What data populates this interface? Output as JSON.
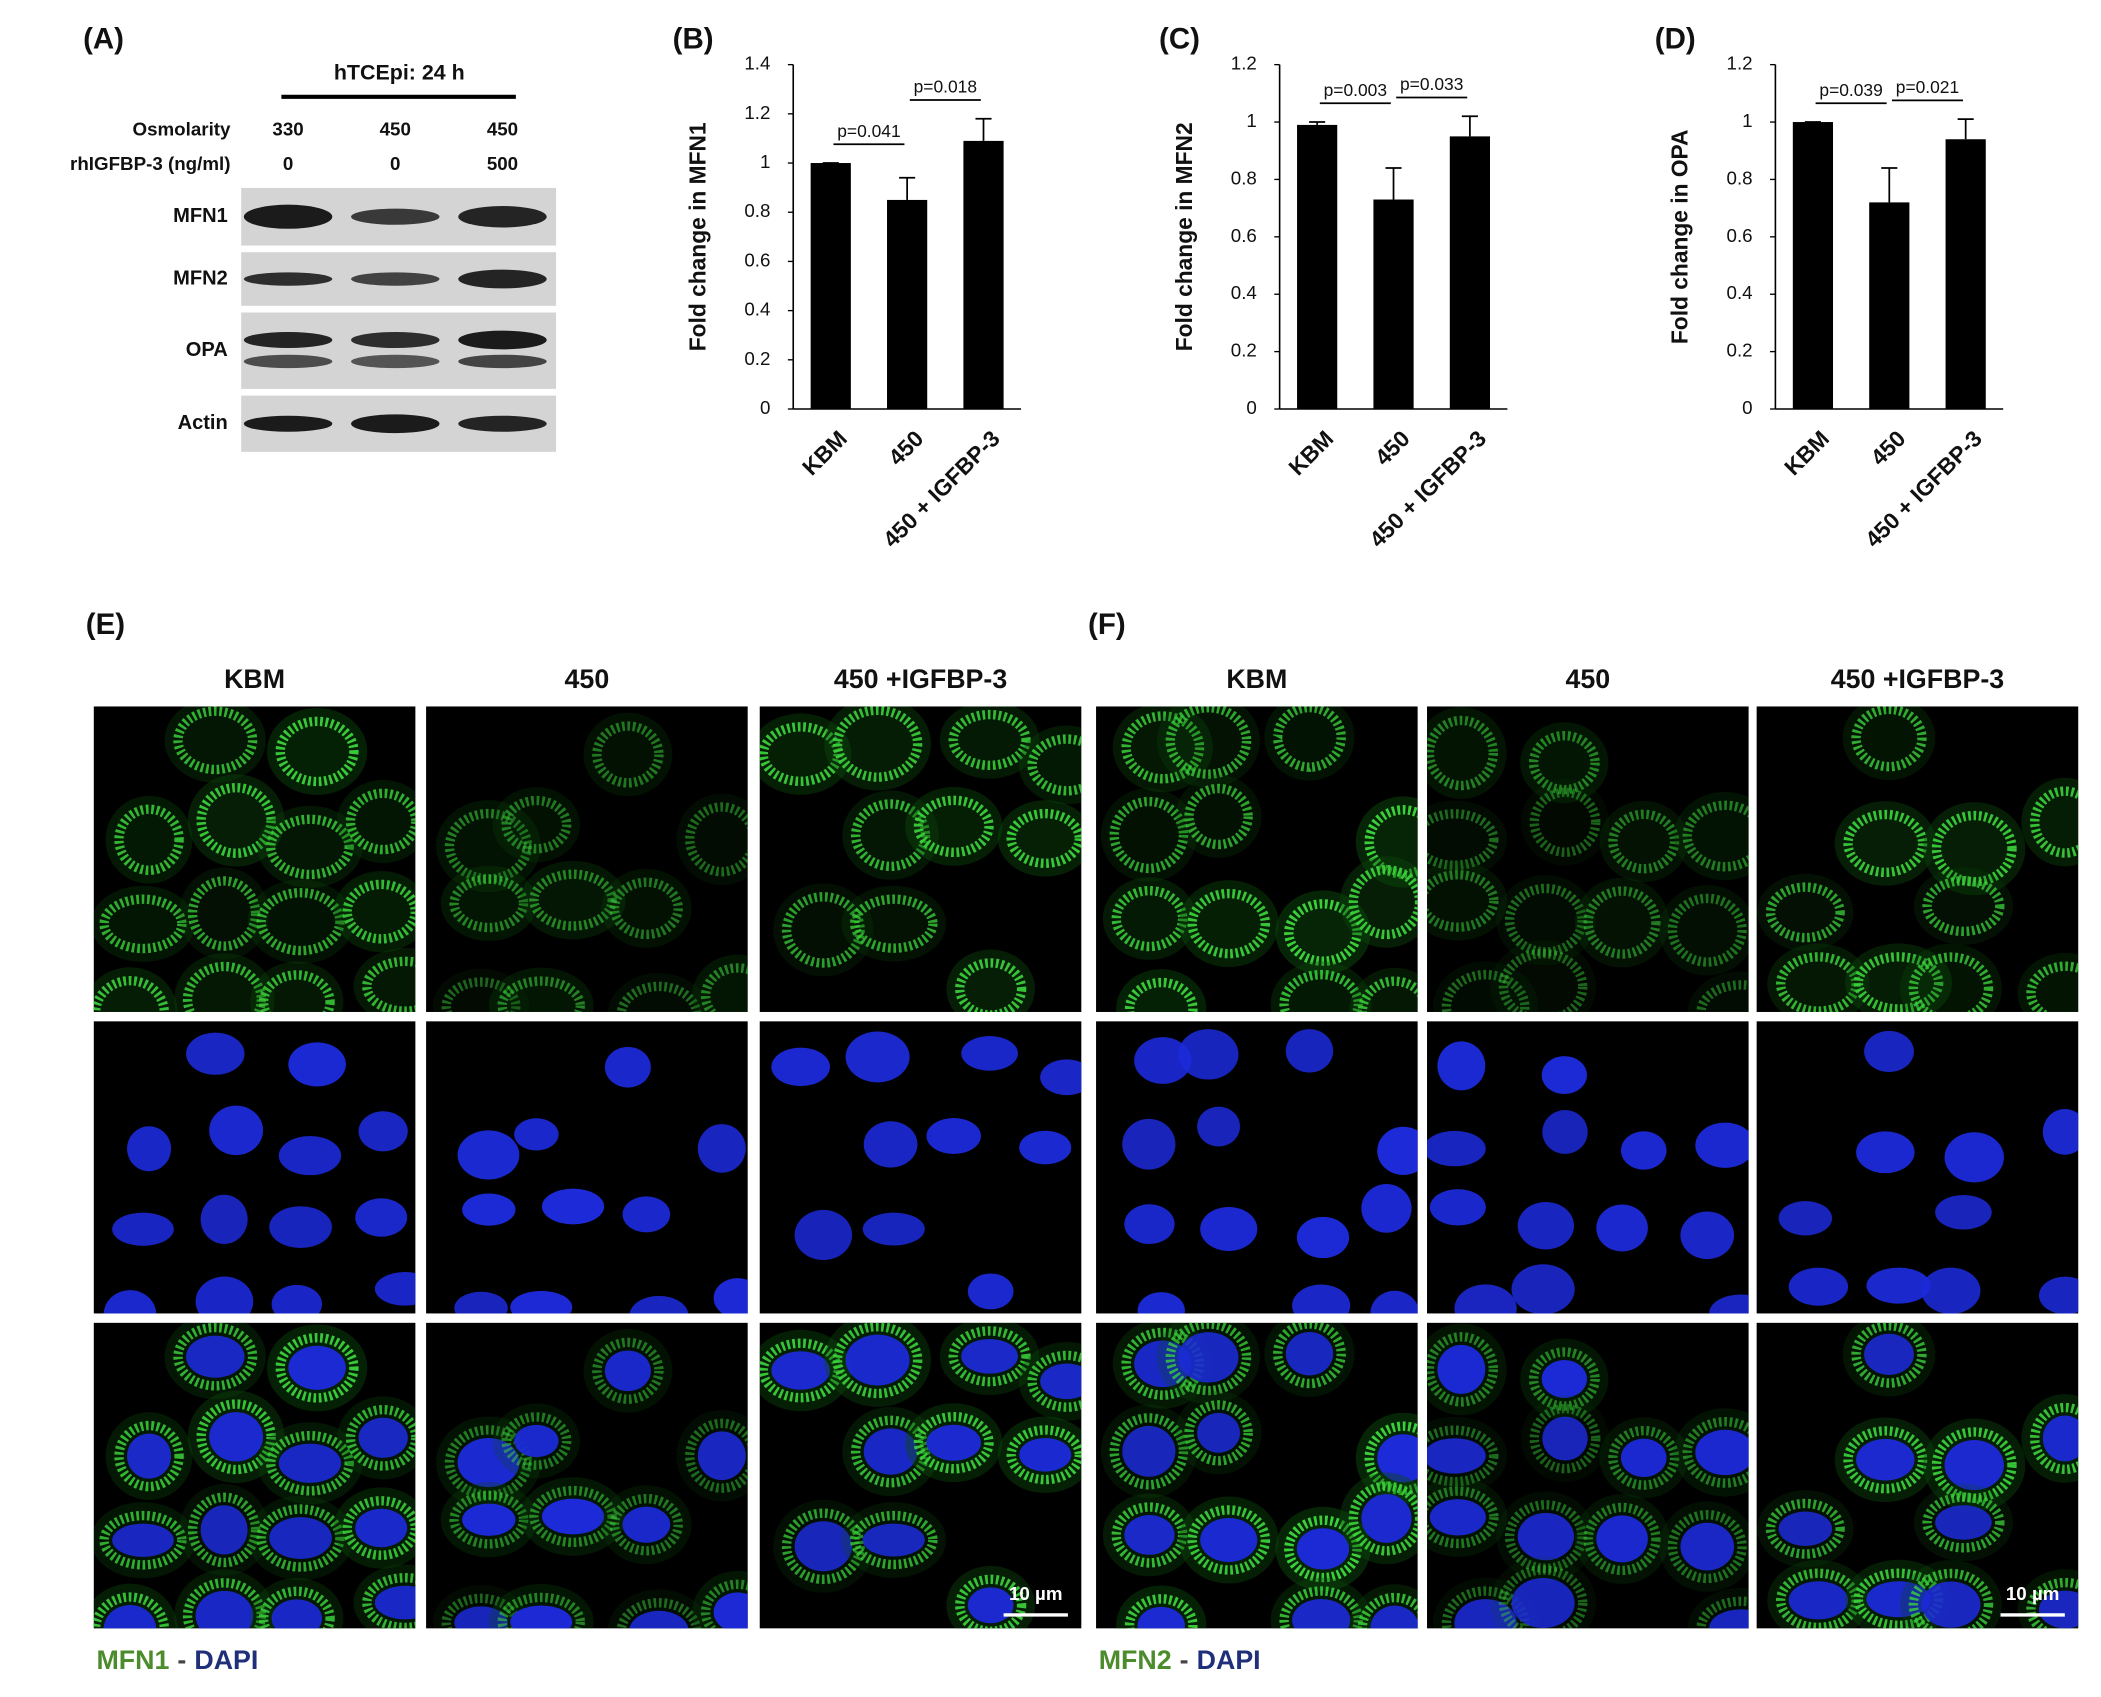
{
  "panel_a": {
    "label": "(A)",
    "header": "hTCEpi: 24 h",
    "conditions": [
      {
        "name": "Osmolarity",
        "values": [
          330,
          450,
          450
        ]
      },
      {
        "name": "rhIGFBP-3 (ng/ml)",
        "values": [
          0,
          0,
          500
        ]
      }
    ],
    "blots": [
      "MFN1",
      "MFN2",
      "OPA",
      "Actin"
    ]
  },
  "chart_data": [
    {
      "type": "bar",
      "label": "(B)",
      "y_label": "Fold change in MFN1",
      "categories": [
        "KBM",
        "450",
        "450 + IGFBP-3"
      ],
      "values": [
        1.0,
        0.85,
        1.09
      ],
      "errors": [
        0.0,
        0.09,
        0.09
      ],
      "color": "#000000",
      "ylim": [
        0,
        1.4
      ],
      "yticks": [
        0,
        0.2,
        0.4,
        0.6,
        0.8,
        1,
        1.2,
        1.4
      ],
      "grid": false,
      "annotations": [
        "p=0.041",
        "p=0.018"
      ]
    },
    {
      "type": "bar",
      "label": "(C)",
      "y_label": "Fold change in MFN2",
      "categories": [
        "KBM",
        "450",
        "450 + IGFBP-3"
      ],
      "values": [
        0.99,
        0.73,
        0.95
      ],
      "errors": [
        0.01,
        0.11,
        0.07
      ],
      "color": "#000000",
      "ylim": [
        0,
        1.2
      ],
      "yticks": [
        0,
        0.2,
        0.4,
        0.6,
        0.8,
        1,
        1.2
      ],
      "grid": false,
      "annotations": [
        "p=0.003",
        "p=0.033"
      ]
    },
    {
      "type": "bar",
      "label": "(D)",
      "y_label": "Fold change in OPA",
      "categories": [
        "KBM",
        "450",
        "450 + IGFBP-3"
      ],
      "values": [
        1.0,
        0.72,
        0.94
      ],
      "errors": [
        0.0,
        0.12,
        0.07
      ],
      "color": "#000000",
      "ylim": [
        0,
        1.2
      ],
      "yticks": [
        0,
        0.2,
        0.4,
        0.6,
        0.8,
        1,
        1.2
      ],
      "grid": false,
      "annotations": [
        "p=0.039",
        "p=0.021"
      ]
    }
  ],
  "imaging": [
    {
      "label": "(E)",
      "columns": [
        "KBM",
        "450",
        "450 +IGFBP-3"
      ],
      "scale_bar": "10 µm",
      "legend": [
        "MFN1",
        "-",
        "DAPI"
      ]
    },
    {
      "label": "(F)",
      "columns": [
        "KBM",
        "450",
        "450 +IGFBP-3"
      ],
      "scale_bar": "10 µm",
      "legend": [
        "MFN2",
        "-",
        "DAPI"
      ]
    }
  ]
}
